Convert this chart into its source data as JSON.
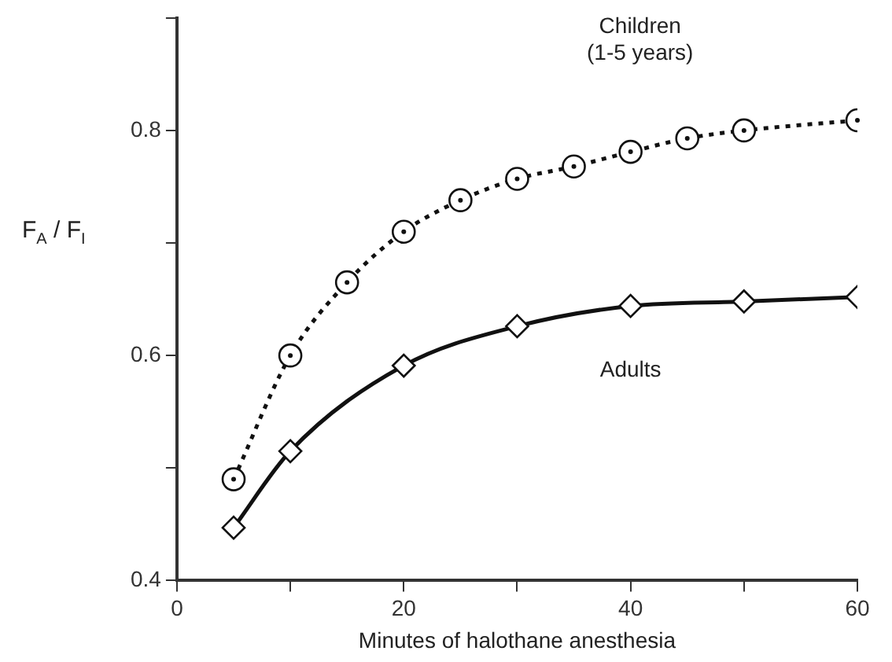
{
  "chart_data": {
    "type": "line",
    "xlabel": "Minutes of halothane anesthesia",
    "ylabel": "F$_{A}$ / F$_{I}$",
    "xlim": [
      0,
      60
    ],
    "xticks": [
      0,
      {
        "value": 10,
        "label": null
      },
      20,
      {
        "value": 30,
        "label": null
      },
      40,
      {
        "value": 50,
        "label": null
      },
      60
    ],
    "ylim": [
      0.4,
      0.9
    ],
    "yticks": [
      0.4,
      {
        "value": 0.5,
        "label": null
      },
      0.6,
      {
        "value": 0.7,
        "label": null
      },
      0.8,
      {
        "value": 0.9,
        "label": null
      }
    ],
    "grid": false,
    "legend": false,
    "series": [
      {
        "name": "Children\n(1-5 years)",
        "color": "#111111",
        "marker": "circle",
        "line_style": "dotted",
        "x": [
          5,
          10,
          15,
          20,
          25,
          30,
          35,
          40,
          45,
          50,
          60
        ],
        "values": [
          0.49,
          0.6,
          0.665,
          0.71,
          0.738,
          0.757,
          0.768,
          0.781,
          0.793,
          0.8,
          0.809
        ]
      },
      {
        "name": "Adults",
        "color": "#111111",
        "marker": "diamond",
        "line_style": "solid",
        "x": [
          5,
          10,
          20,
          30,
          40,
          50,
          60
        ],
        "values": [
          0.447,
          0.515,
          0.591,
          0.626,
          0.644,
          0.648,
          0.652
        ]
      }
    ]
  }
}
